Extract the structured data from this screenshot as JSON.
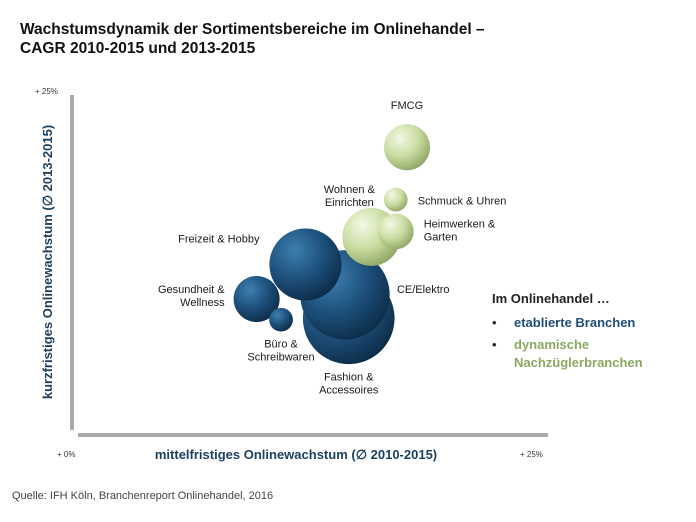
{
  "chart_data": {
    "type": "bubble",
    "title": "Wachstumsdynamik der Sortimentsbereiche im Onlinehandel – CAGR 2010-2015 und 2013-2015",
    "title_lines": [
      "Wachstumsdynamik der Sortimentsbereiche im Onlinehandel –",
      "CAGR 2010-2015 und 2013-2015"
    ],
    "xlabel": "mittelfristiges Onlinewachstum (∅ 2010-2015)",
    "ylabel": "kurzfristiges Onlinewachstum (∅ 2013-2015)",
    "xlim": [
      0,
      25
    ],
    "ylim": [
      0,
      25
    ],
    "x_ticks": [
      "+ 0%",
      "+ 25%"
    ],
    "y_ticks": [
      "+ 0%",
      "+ 25%"
    ],
    "grid": false,
    "colors": {
      "etabliert": "#1f4e79",
      "dynamisch": "#c9dca0"
    },
    "points": [
      {
        "name": "Fashion & Accessoires",
        "lines": [
          "Fashion &",
          "Accessoires"
        ],
        "x": 14.4,
        "y": 8.6,
        "size": 21,
        "group": "etabliert"
      },
      {
        "name": "CE/Elektro",
        "lines": [
          "CE/Elektro"
        ],
        "x": 14.2,
        "y": 10.3,
        "size": 20,
        "group": "etabliert"
      },
      {
        "name": "Freizeit & Hobby",
        "lines": [
          "Freizeit & Hobby"
        ],
        "x": 12.1,
        "y": 12.5,
        "size": 13,
        "group": "etabliert"
      },
      {
        "name": "Gesundheit & Wellness",
        "lines": [
          "Gesundheit &",
          "Wellness"
        ],
        "x": 9.5,
        "y": 10.0,
        "size": 5.3,
        "group": "etabliert"
      },
      {
        "name": "Büro & Schreibwaren",
        "lines": [
          "Büro &",
          "Schreibwaren"
        ],
        "x": 10.8,
        "y": 8.5,
        "size": 1.4,
        "group": "etabliert"
      },
      {
        "name": "Wohnen & Einrichten",
        "lines": [
          "Wohnen &",
          "Einrichten"
        ],
        "x": 15.6,
        "y": 14.5,
        "size": 8.4,
        "group": "dynamisch"
      },
      {
        "name": "Heimwerken & Garten",
        "lines": [
          "Heimwerken &",
          "Garten"
        ],
        "x": 16.9,
        "y": 14.9,
        "size": 3.2,
        "group": "dynamisch"
      },
      {
        "name": "Schmuck & Uhren",
        "lines": [
          "Schmuck & Uhren"
        ],
        "x": 16.9,
        "y": 17.2,
        "size": 1.4,
        "group": "dynamisch"
      },
      {
        "name": "FMCG",
        "lines": [
          "FMCG"
        ],
        "x": 17.5,
        "y": 21.0,
        "size": 5.3,
        "group": "dynamisch"
      }
    ],
    "legend": {
      "heading": "Im Onlinehandel …",
      "bullet": "•",
      "items": [
        {
          "lines": [
            "etablierte Branchen"
          ],
          "color": "#1f4e79"
        },
        {
          "lines": [
            "dynamische",
            "Nachzüglerbranchen"
          ],
          "color": "#8aa860"
        }
      ]
    }
  },
  "source": "Quelle: IFH Köln, Branchenreport Onlinehandel,  2016"
}
